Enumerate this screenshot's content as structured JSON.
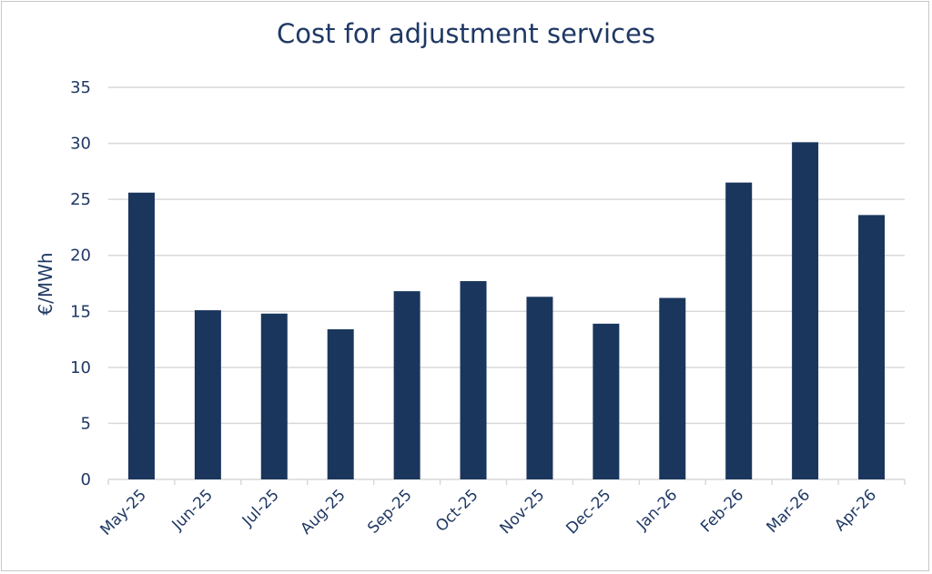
{
  "chart_data": {
    "type": "bar",
    "title": "Cost for adjustment services",
    "xlabel": "",
    "ylabel": "€/MWh",
    "ylim": [
      0,
      35
    ],
    "yticks": [
      "0",
      "5",
      "10",
      "15",
      "20",
      "25",
      "30",
      "35"
    ],
    "grid": true,
    "categories": [
      "May-25",
      "Jun-25",
      "Jul-25",
      "Aug-25",
      "Sep-25",
      "Oct-25",
      "Nov-25",
      "Dec-25",
      "Jan-26",
      "Feb-26",
      "Mar-26",
      "Apr-26"
    ],
    "values": [
      25.6,
      15.1,
      14.8,
      13.4,
      16.8,
      17.7,
      16.3,
      13.9,
      16.2,
      26.5,
      30.1,
      23.6
    ],
    "bar_color": "#1a365d",
    "grid_color": "#d9d9d9",
    "text_color": "#1f3864"
  }
}
